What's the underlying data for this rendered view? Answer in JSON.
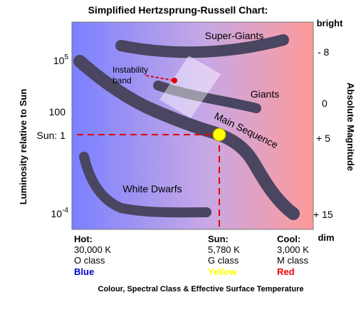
{
  "title": "Simplified Hertzsprung-Russell Chart:",
  "left_axis": {
    "label": "Luminosity relative to Sun",
    "ticks": [
      {
        "base": "10",
        "exp": "5"
      },
      {
        "base": "100",
        "exp": ""
      },
      {
        "base": "Sun: 1",
        "exp": ""
      },
      {
        "base": "10",
        "exp": "-4"
      }
    ]
  },
  "right_axis": {
    "label": "Absolute Magnitude",
    "top_note": "bright",
    "bottom_note": "dim",
    "ticks": [
      "- 8",
      "0",
      "+ 5",
      "+ 15"
    ]
  },
  "regions": {
    "super_giants": "Super-Giants",
    "giants": "Giants",
    "main_sequence": "Main Sequence",
    "white_dwarfs": "White Dwarfs",
    "instability_line1": "Instability",
    "instability_line2": "band"
  },
  "classes": {
    "hot": {
      "title": "Hot:",
      "temp": "30,000 K",
      "cls": "O class",
      "colour": "Blue"
    },
    "sun": {
      "title": "Sun:",
      "temp": "5,780 K",
      "cls": "G class",
      "colour": "Yellow"
    },
    "cool": {
      "title": "Cool:",
      "temp": "3,000 K",
      "cls": "M class",
      "colour": "Red"
    }
  },
  "x_caption": "Colour, Spectral Class & Effective Surface Temperature",
  "colors": {
    "hot": "#7a80ff",
    "cool": "#ff9a9a",
    "band": "#4a4560",
    "sun_marker": "#ffff00",
    "guide": "#e00000",
    "blue_text": "#0000cc",
    "yellow_text": "#ffff00",
    "red_text": "#ee0000"
  }
}
